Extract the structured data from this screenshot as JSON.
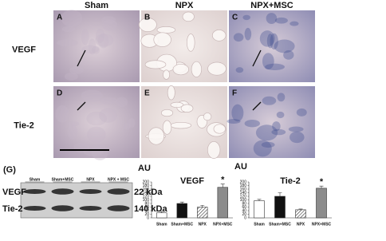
{
  "micrographs": {
    "columns": [
      "Sham",
      "NPX",
      "NPX+MSC"
    ],
    "rows": [
      "VEGF",
      "Tie-2"
    ],
    "panels": [
      "A",
      "B",
      "C",
      "D",
      "E",
      "F"
    ]
  },
  "blot": {
    "label": "(G)",
    "lanes": [
      "Sham",
      "Sham+MSC",
      "NPX",
      "NPX + MSC"
    ],
    "rows": [
      {
        "label": "VEGF",
        "size": "22 kDa"
      },
      {
        "label": "Tie-2",
        "size": "140 kDa"
      }
    ]
  },
  "chart_data": [
    {
      "type": "bar",
      "title": "VEGF",
      "y_label": "AU",
      "categories": [
        "Sham",
        "Sham+MSC",
        "NPX",
        "NPX+MSC"
      ],
      "values": [
        28,
        80,
        60,
        170
      ],
      "errors": [
        8,
        8,
        10,
        18
      ],
      "colors": [
        "#ffffff",
        "#111111",
        "#ffffff",
        "#8c8c8c"
      ],
      "hatch": [
        false,
        false,
        true,
        false
      ],
      "annotation": "*",
      "ylim": [
        0,
        200
      ],
      "yticks": [
        0,
        20,
        40,
        60,
        80,
        100,
        120,
        140,
        160,
        180,
        200
      ]
    },
    {
      "type": "bar",
      "title": "Tie-2",
      "y_label": "AU",
      "categories": [
        "Sham",
        "Sham+MSC",
        "NPX",
        "NPX+MSC"
      ],
      "values": [
        95,
        120,
        45,
        165
      ],
      "errors": [
        8,
        20,
        4,
        12
      ],
      "colors": [
        "#ffffff",
        "#111111",
        "#ffffff",
        "#8c8c8c"
      ],
      "hatch": [
        false,
        false,
        true,
        false
      ],
      "annotation": "*",
      "ylim": [
        0,
        200
      ],
      "yticks": [
        0,
        20,
        40,
        60,
        80,
        100,
        120,
        140,
        160,
        180,
        200
      ]
    }
  ]
}
